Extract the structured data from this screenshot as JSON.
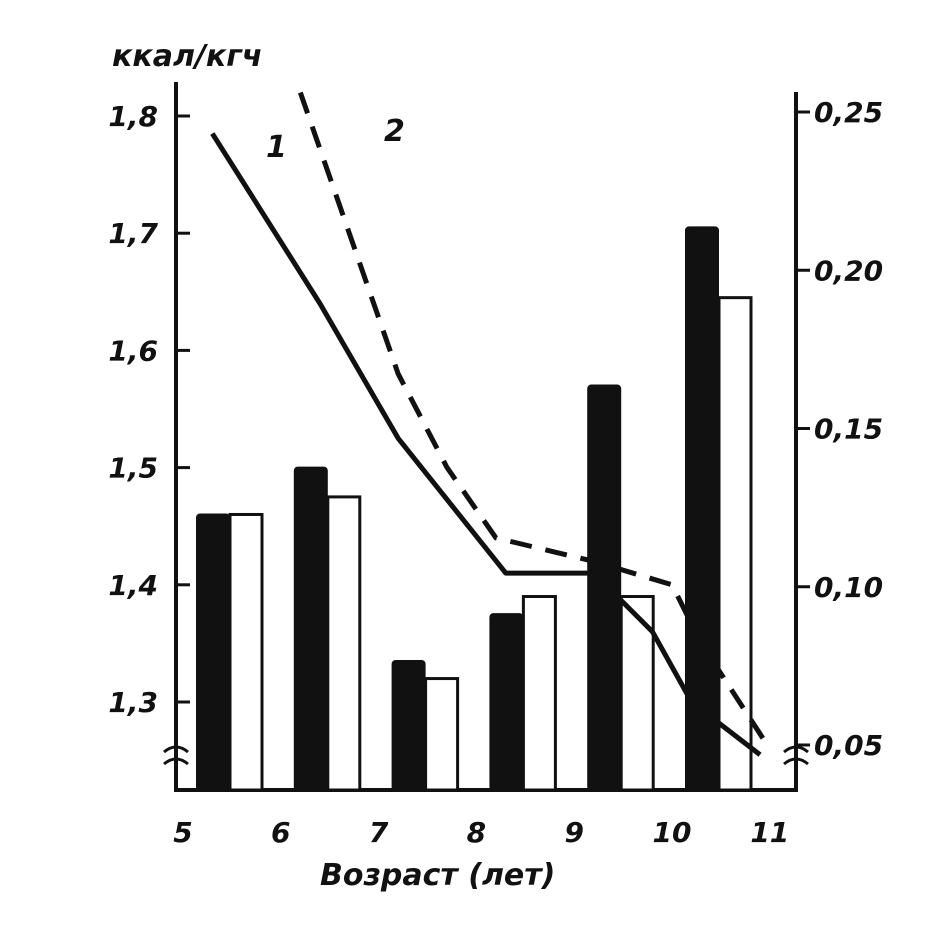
{
  "chart_data": {
    "type": "bar",
    "ylabel_left": "ккал/кгч",
    "xlabel": "Возраст (лет)",
    "left_axis": {
      "ticks": [
        "1,3",
        "1,4",
        "1,5",
        "1,6",
        "1,7",
        "1,8"
      ],
      "range": [
        1.25,
        1.8
      ]
    },
    "right_axis": {
      "ticks": [
        "0,05",
        "0,10",
        "0,15",
        "0,20",
        "0,25"
      ],
      "range": [
        0.05,
        0.25
      ]
    },
    "x_ticks": [
      "5",
      "6",
      "7",
      "8",
      "9",
      "10",
      "11"
    ],
    "bars": {
      "groups": [
        "5",
        "6",
        "7",
        "8",
        "9",
        "10"
      ],
      "series": [
        {
          "fill": "#111111",
          "values": [
            1.46,
            1.5,
            1.335,
            1.375,
            1.57,
            1.705
          ]
        },
        {
          "fill": "#ffffff",
          "values": [
            1.46,
            1.475,
            1.32,
            1.39,
            1.39,
            1.645
          ]
        }
      ]
    },
    "lines": [
      {
        "name": "1",
        "style": "solid",
        "x": [
          5.3,
          6.4,
          7.2,
          8.3,
          9.2,
          9.8,
          10.2,
          10.9
        ],
        "y": [
          1.785,
          1.64,
          1.525,
          1.41,
          1.41,
          1.36,
          1.3,
          1.255
        ]
      },
      {
        "name": "2",
        "style": "dashed",
        "x": [
          6.2,
          7.2,
          7.7,
          8.2,
          9.2,
          10.0,
          10.3,
          11.0
        ],
        "y": [
          1.82,
          1.58,
          1.5,
          1.44,
          1.42,
          1.4,
          1.35,
          1.26
        ]
      }
    ]
  }
}
